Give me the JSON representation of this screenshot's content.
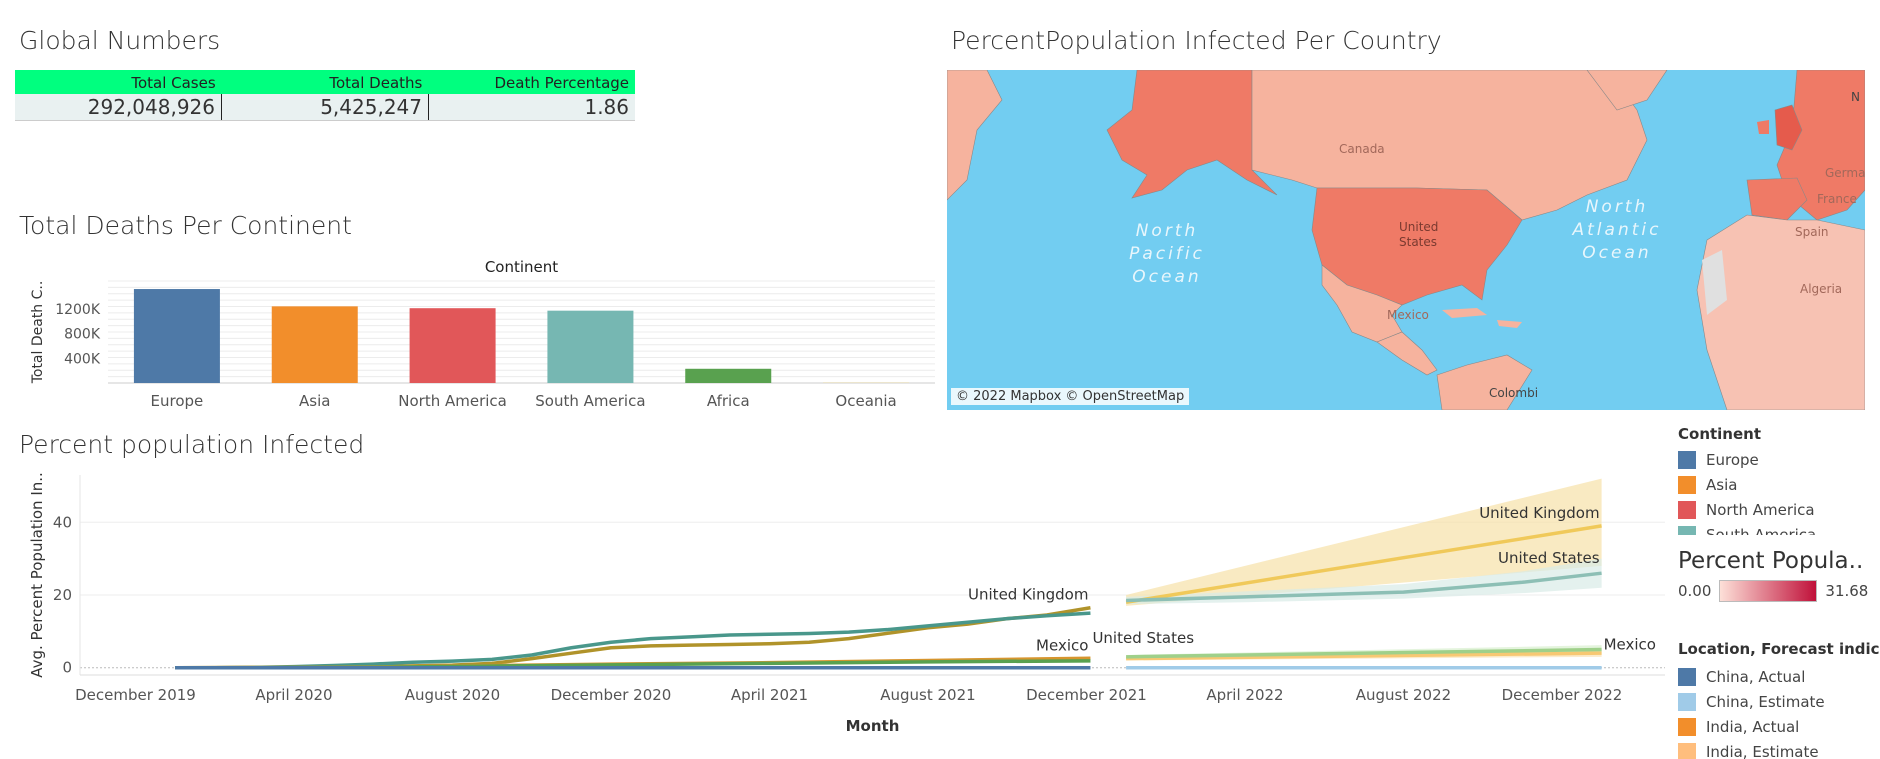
{
  "global_numbers": {
    "title": "Global Numbers",
    "headers": [
      "Total Cases",
      "Total Deaths",
      "Death Percentage"
    ],
    "values": [
      "292,048,926",
      "5,425,247",
      "1.86"
    ]
  },
  "map": {
    "title": "PercentPopulation Infected Per Country",
    "labels": {
      "canada": "Canada",
      "us1": "United",
      "us2": "States",
      "mexico": "Mexico",
      "colombia": "Colombi",
      "algeria": "Algeria",
      "spain": "Spain",
      "france": "France",
      "germany": "Germar",
      "north_edge": "N",
      "pacific": [
        "North",
        "Pacific",
        "Ocean"
      ],
      "atlantic": [
        "North",
        "Atlantic",
        "Ocean"
      ]
    },
    "attribution": "© 2022 Mapbox © OpenStreetMap",
    "colors": {
      "water": "#72cdf1",
      "light": "#f6b39e",
      "dark": "#ef7a66",
      "land_light": "#f7c2b3"
    }
  },
  "deaths_chart_title": "Total Deaths Per Continent",
  "percent_chart_title": "Percent population Infected",
  "continent_legend": {
    "title": "Continent",
    "items": [
      {
        "name": "Europe",
        "color": "#4e79a7"
      },
      {
        "name": "Asia",
        "color": "#f28e2b"
      },
      {
        "name": "North America",
        "color": "#e15759"
      },
      {
        "name": "South America",
        "color": "#76b7b2"
      }
    ]
  },
  "percent_legend": {
    "title": "Percent Popula..",
    "min": "0.00",
    "max": "31.68",
    "colors": [
      "#fde0d8",
      "#c0113a"
    ]
  },
  "location_legend": {
    "title": "Location, Forecast indicat..",
    "items": [
      {
        "name": "China, Actual",
        "color": "#4e79a7"
      },
      {
        "name": "China, Estimate",
        "color": "#a0cbe8"
      },
      {
        "name": "India, Actual",
        "color": "#f28e2b"
      },
      {
        "name": "India, Estimate",
        "color": "#ffbe7d"
      }
    ]
  },
  "chart_data": [
    {
      "type": "bar",
      "title": "Total Deaths Per Continent",
      "header": "Continent",
      "ylabel": "Total Death C..",
      "categories": [
        "Europe",
        "Asia",
        "North America",
        "South America",
        "Africa",
        "Oceania"
      ],
      "values": [
        1520000,
        1240000,
        1210000,
        1170000,
        230000,
        3000
      ],
      "colors": [
        "#4e79a7",
        "#f28e2b",
        "#e15759",
        "#76b7b2",
        "#59a14f",
        "#edc948"
      ],
      "yticks": [
        400000,
        800000,
        1200000
      ],
      "ytick_labels": [
        "400K",
        "800K",
        "1200K"
      ],
      "ylim": [
        0,
        1650000
      ],
      "grid": true
    },
    {
      "type": "line",
      "title": "Percent population Infected",
      "xlabel": "Month",
      "ylabel": "Avg. Percent Population In..",
      "x_tick_labels": [
        "December 2019",
        "April 2020",
        "August 2020",
        "December 2020",
        "April 2021",
        "August 2021",
        "December 2021",
        "April 2022",
        "August 2022",
        "December 2022"
      ],
      "x_tick_months": [
        0,
        4,
        8,
        12,
        16,
        20,
        24,
        28,
        32,
        36
      ],
      "ylim": [
        -2,
        53
      ],
      "yticks": [
        0,
        20,
        40
      ],
      "series": [
        {
          "name": "United Kingdom",
          "color": "#b0932a",
          "x": [
            1,
            2,
            3,
            4,
            5,
            6,
            7,
            8,
            9,
            10,
            11,
            12,
            13,
            14,
            15,
            16,
            17,
            18,
            19,
            20,
            21,
            22,
            23,
            24.1
          ],
          "y": [
            0,
            0,
            0.05,
            0.1,
            0.2,
            0.3,
            0.5,
            0.7,
            1.2,
            2.5,
            4,
            5.5,
            6,
            6.2,
            6.4,
            6.6,
            7,
            8,
            9.5,
            11,
            12,
            13.5,
            14.5,
            16.5
          ]
        },
        {
          "name": "United States",
          "color": "#49978b",
          "x": [
            1,
            2,
            3,
            4,
            5,
            6,
            7,
            8,
            9,
            10,
            11,
            12,
            13,
            14,
            15,
            16,
            17,
            18,
            19,
            20,
            21,
            22,
            23,
            24.1
          ],
          "y": [
            0,
            0,
            0.1,
            0.3,
            0.6,
            1,
            1.5,
            1.8,
            2.3,
            3.5,
            5.5,
            7,
            8,
            8.5,
            9,
            9.2,
            9.4,
            9.8,
            10.5,
            11.5,
            12.5,
            13.5,
            14.3,
            15
          ]
        },
        {
          "name": "Mexico",
          "color": "#d6952e",
          "x": [
            1,
            6,
            12,
            16,
            20,
            24.1
          ],
          "y": [
            0,
            0.2,
            1,
            1.4,
            2,
            2.6
          ]
        },
        {
          "name": "Mexico",
          "color": "#59a14f",
          "x": [
            1,
            6,
            12,
            16,
            20,
            24.1
          ],
          "y": [
            0,
            0.1,
            0.8,
            1.2,
            1.6,
            1.9
          ]
        },
        {
          "name": "China",
          "color": "#4e79a7",
          "x": [
            1,
            24.1
          ],
          "y": [
            0,
            0
          ]
        }
      ],
      "forecasts": [
        {
          "name": "United Kingdom",
          "color": "#f0c95a",
          "band": "#f6e1a8",
          "x": [
            25,
            37
          ],
          "y": [
            18,
            39
          ],
          "lower": [
            17,
            28
          ],
          "upper": [
            20,
            52
          ]
        },
        {
          "name": "United States",
          "color": "#8dbfb5",
          "band": "#d9ebe7",
          "x": [
            25,
            28,
            32,
            35,
            37
          ],
          "y": [
            18.5,
            19.5,
            20.8,
            23.5,
            26
          ],
          "lower": [
            17.5,
            18,
            19,
            20.5,
            22
          ],
          "upper": [
            19.5,
            21,
            23,
            26.5,
            30
          ]
        },
        {
          "name": "India",
          "color": "#f7c873",
          "band": "#fbe3b5",
          "x": [
            25,
            37
          ],
          "y": [
            2.5,
            4
          ],
          "lower": [
            2,
            3
          ],
          "upper": [
            3,
            5
          ]
        },
        {
          "name": "Mexico",
          "color": "#9fd08a",
          "band": "#d8efce",
          "x": [
            25,
            37
          ],
          "y": [
            3,
            5
          ],
          "lower": [
            2.5,
            3.8
          ],
          "upper": [
            3.5,
            6.2
          ]
        },
        {
          "name": "China",
          "color": "#a0cbe8",
          "band": "#d9ecf7",
          "x": [
            25,
            37
          ],
          "y": [
            0,
            0
          ],
          "lower": [
            -0.3,
            -0.3
          ],
          "upper": [
            0.3,
            0.3
          ]
        }
      ],
      "annotations": [
        {
          "text": "United Kingdom",
          "x": 24.1,
          "y": 16.5,
          "anchor": "end",
          "dy": -8
        },
        {
          "text": "United States",
          "x": 24.1,
          "y": 15,
          "anchor": "start",
          "dy": 30
        },
        {
          "text": "Mexico",
          "x": 24.1,
          "y": 2.6,
          "anchor": "end",
          "dy": -8
        },
        {
          "text": "United Kingdom",
          "x": 37,
          "y": 39,
          "anchor": "end",
          "dy": -8
        },
        {
          "text": "United States",
          "x": 37,
          "y": 26,
          "anchor": "end",
          "dy": -10
        },
        {
          "text": "Mexico",
          "x": 37,
          "y": 5,
          "anchor": "start",
          "dy": 0
        }
      ]
    }
  ]
}
